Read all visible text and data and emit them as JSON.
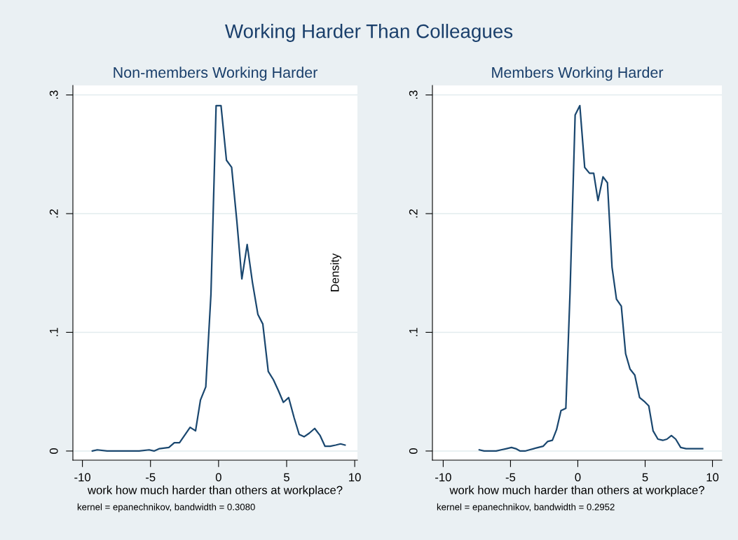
{
  "chart_data": [
    {
      "type": "line",
      "title": "Working Harder Than Colleagues",
      "subtitle": "Non-members Working Harder",
      "xlabel": "work how much harder than others at workplace?",
      "annotations": [
        "kernel = epanechnikov, bandwidth = 0.3080"
      ],
      "series": [
        {
          "color": "#1a476f",
          "x": [
            -9.27,
            -8.91,
            -8.19,
            -5.83,
            -5.1,
            -4.74,
            -4.34,
            -3.65,
            -3.25,
            -2.87,
            -2.09,
            -1.69,
            -1.33,
            -0.94,
            -0.56,
            -0.18,
            0.18,
            0.58,
            0.96,
            1.34,
            1.71,
            2.1,
            2.49,
            2.89,
            3.25,
            3.65,
            4.03,
            4.39,
            4.76,
            5.15,
            5.55,
            5.92,
            6.28,
            6.66,
            7.06,
            7.46,
            7.82,
            8.2,
            8.6,
            8.96,
            9.29
          ],
          "values": [
            0.0,
            0.001,
            0.0,
            0.0,
            0.001,
            0.0,
            0.002,
            0.003,
            0.007,
            0.007,
            0.02,
            0.017,
            0.043,
            0.054,
            0.132,
            0.291,
            0.291,
            0.245,
            0.239,
            0.194,
            0.145,
            0.174,
            0.142,
            0.115,
            0.107,
            0.067,
            0.06,
            0.051,
            0.041,
            0.045,
            0.028,
            0.014,
            0.012,
            0.015,
            0.019,
            0.013,
            0.004,
            0.004,
            0.005,
            0.006,
            0.005
          ]
        }
      ],
      "xlim": [
        -10.7,
        10.2
      ],
      "xticks": [
        -10,
        -5,
        0,
        5,
        10
      ],
      "ylim": [
        -0.0077,
        0.308
      ],
      "yticks": [
        {
          "value": 0,
          "label": "0"
        },
        {
          "value": 0.1,
          "label": ".1"
        },
        {
          "value": 0.2,
          "label": ".2"
        },
        {
          "value": 0.3,
          "label": ".3"
        }
      ],
      "grid": "y",
      "marker": "none",
      "line_style": "solid"
    },
    {
      "type": "line",
      "subtitle": "Members Working Harder",
      "xlabel": "work how much harder than others at workplace?",
      "ylabel": "Density",
      "annotations": [
        "kernel = epanechnikov, bandwidth = 0.2952"
      ],
      "series": [
        {
          "color": "#1a476f",
          "x": [
            -7.32,
            -6.96,
            -6.6,
            -6.06,
            -5.7,
            -5.3,
            -4.93,
            -4.61,
            -4.28,
            -3.92,
            -3.6,
            -3.27,
            -2.94,
            -2.58,
            -2.25,
            -1.89,
            -1.58,
            -1.25,
            -0.89,
            -0.58,
            -0.2,
            0.15,
            0.51,
            0.87,
            1.18,
            1.5,
            1.87,
            2.2,
            2.54,
            2.87,
            3.23,
            3.55,
            3.88,
            4.23,
            4.59,
            4.92,
            5.27,
            5.59,
            5.95,
            6.31,
            6.62,
            6.95,
            7.27,
            7.64,
            8.04,
            8.44,
            8.77,
            9.08,
            9.27
          ],
          "values": [
            0.001,
            0.0,
            0.0,
            0.0,
            0.001,
            0.002,
            0.003,
            0.002,
            0.0,
            0.0,
            0.001,
            0.002,
            0.003,
            0.004,
            0.008,
            0.009,
            0.018,
            0.034,
            0.036,
            0.133,
            0.283,
            0.291,
            0.239,
            0.234,
            0.234,
            0.211,
            0.231,
            0.226,
            0.155,
            0.128,
            0.122,
            0.082,
            0.069,
            0.064,
            0.045,
            0.042,
            0.038,
            0.017,
            0.01,
            0.009,
            0.01,
            0.013,
            0.01,
            0.003,
            0.002,
            0.002,
            0.002,
            0.002,
            0.002
          ]
        }
      ],
      "xlim": [
        -10.8,
        10.7
      ],
      "xticks": [
        -10,
        -5,
        0,
        5,
        10
      ],
      "ylim": [
        -0.0077,
        0.308
      ],
      "yticks": [
        {
          "value": 0,
          "label": "0"
        },
        {
          "value": 0.1,
          "label": ".1"
        },
        {
          "value": 0.2,
          "label": ".2"
        },
        {
          "value": 0.3,
          "label": ".3"
        }
      ],
      "grid": "y",
      "marker": "none",
      "line_style": "solid"
    }
  ]
}
